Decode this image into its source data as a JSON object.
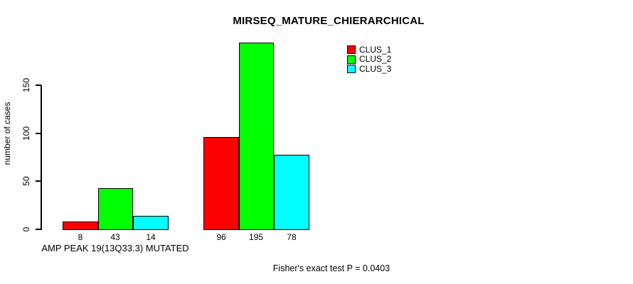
{
  "chart_data": {
    "type": "bar",
    "title": "MIRSEQ_MATURE_CHIERARCHICAL",
    "ylabel": "number of cases",
    "xlabel": "",
    "categories": [
      "AMP PEAK 19(13Q33.3) MUTATED",
      ""
    ],
    "series": [
      {
        "name": "CLUS_1",
        "color": "#FF0000",
        "values": [
          8,
          96
        ]
      },
      {
        "name": "CLUS_2",
        "color": "#00FF00",
        "values": [
          43,
          195
        ]
      },
      {
        "name": "CLUS_3",
        "color": "#00FFFF",
        "values": [
          14,
          78
        ]
      }
    ],
    "y_ticks": [
      0,
      50,
      100,
      150
    ],
    "ylim": [
      0,
      198
    ],
    "grid": false,
    "bar_value_labels_shown": true,
    "legend": {
      "position": "top-right",
      "border": false
    },
    "annotation": "Fisher's exact test P = 0.0403"
  }
}
